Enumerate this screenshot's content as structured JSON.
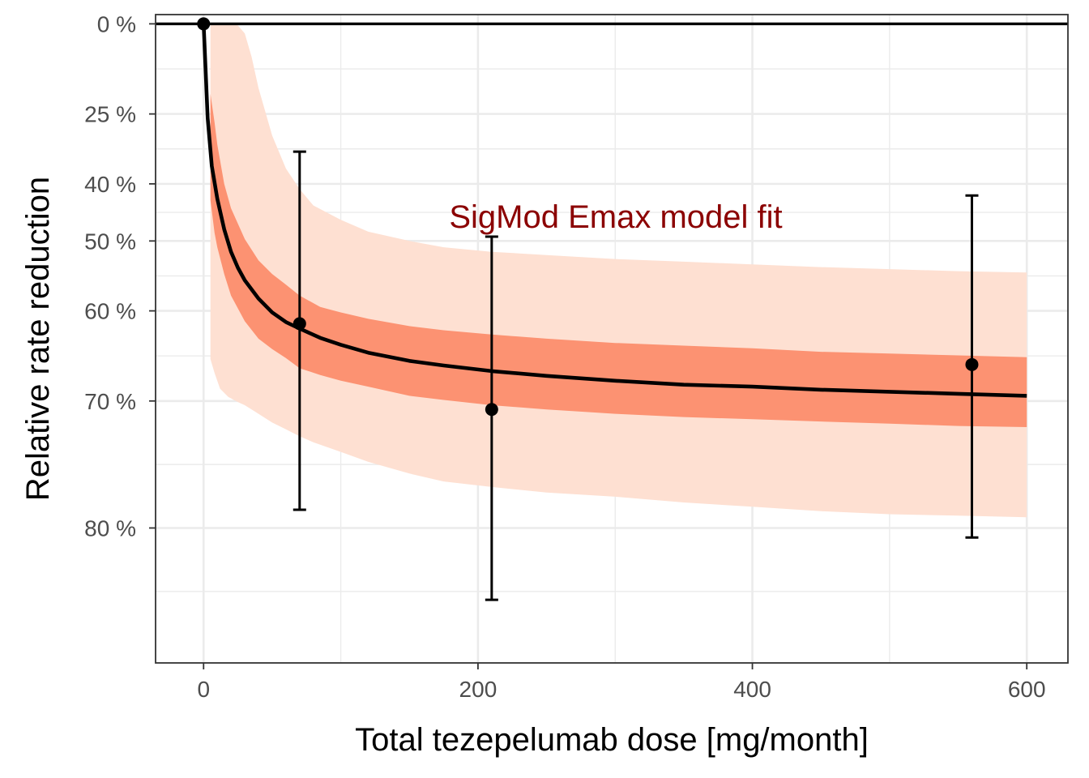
{
  "chart_data": {
    "type": "line",
    "xlabel": "Total tezepelumab dose [mg/month]",
    "ylabel": "Relative rate reduction",
    "annotation": "SigMod Emax model fit",
    "xlim": [
      -35,
      630
    ],
    "ylim": [
      -3,
      87
    ],
    "y_scale": "ratio",
    "x_ticks": [
      0,
      200,
      400,
      600
    ],
    "x_tick_labels": [
      "0",
      "200",
      "400",
      "600"
    ],
    "y_ticks": [
      0,
      25,
      40,
      50,
      60,
      70,
      80
    ],
    "y_tick_labels": [
      "0 %",
      "25 %",
      "40 %",
      "50 %",
      "60 %",
      "70 %",
      "80 %"
    ],
    "reference_line": 0,
    "grid": true,
    "colors": {
      "fit_line": "#000000",
      "inner_band": "#FC9272",
      "outer_band": "#FEE0D2",
      "annotation": "#8B0000",
      "grid": "#EBEBEB"
    },
    "fit_curve": {
      "x": [
        0,
        3,
        6,
        10,
        15,
        20,
        25,
        30,
        40,
        50,
        60,
        70,
        85,
        100,
        120,
        150,
        175,
        210,
        250,
        300,
        350,
        400,
        450,
        500,
        550,
        600
      ],
      "y": [
        0,
        26,
        36.5,
        42.8,
        48.1,
        51.7,
        54.1,
        55.9,
        58.4,
        60.2,
        61.4,
        62.2,
        63.3,
        64.1,
        65.0,
        65.9,
        66.4,
        67.0,
        67.5,
        68.0,
        68.4,
        68.6,
        68.9,
        69.1,
        69.3,
        69.5
      ]
    },
    "inner_band": {
      "x": [
        5,
        8,
        10,
        15,
        20,
        30,
        40,
        50,
        60,
        70,
        85,
        100,
        120,
        150,
        175,
        210,
        250,
        300,
        350,
        400,
        450,
        500,
        550,
        600
      ],
      "lower": [
        20,
        27,
        32,
        40,
        44.5,
        49.7,
        53,
        55,
        56.5,
        58,
        59.5,
        60.2,
        61,
        61.9,
        62.4,
        62.9,
        63.4,
        63.9,
        64.2,
        64.5,
        64.9,
        65.1,
        65.3,
        65.5
      ],
      "upper": [
        43,
        48.7,
        51,
        55,
        58,
        61.3,
        63.4,
        64.6,
        65.6,
        66.7,
        67.4,
        68,
        68.6,
        69.5,
        69.9,
        70.4,
        70.8,
        71.2,
        71.5,
        71.7,
        71.9,
        72.1,
        72.3,
        72.4
      ]
    },
    "outer_band": {
      "x": [
        5,
        8,
        12,
        18,
        25,
        30,
        35,
        40,
        50,
        60,
        70,
        80,
        100,
        120,
        150,
        175,
        210,
        250,
        300,
        350,
        400,
        450,
        500,
        550,
        600
      ],
      "lower": [
        0,
        0,
        0,
        0,
        0.5,
        3,
        10,
        18.5,
        30,
        37,
        41,
        44,
        46.5,
        48.5,
        50,
        51,
        51.7,
        52.2,
        52.8,
        53.2,
        53.6,
        54,
        54.3,
        54.6,
        54.8
      ],
      "upper": [
        65.7,
        67.2,
        68.8,
        69.6,
        70.1,
        70.4,
        70.8,
        71.2,
        72,
        72.6,
        73.2,
        73.7,
        74.5,
        75.3,
        76.2,
        76.8,
        77.2,
        77.6,
        77.9,
        78.3,
        78.6,
        78.9,
        79.1,
        79.2,
        79.3
      ]
    },
    "observed": [
      {
        "x": 0,
        "y": 0
      },
      {
        "x": 70,
        "y": 61.6,
        "lower": 33.5,
        "upper": 78.8
      },
      {
        "x": 210,
        "y": 70.8,
        "lower": 49.3,
        "upper": 84.1
      },
      {
        "x": 560,
        "y": 66.3,
        "lower": 42.2,
        "upper": 80.6
      }
    ]
  }
}
